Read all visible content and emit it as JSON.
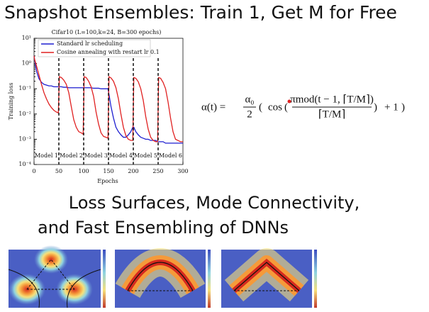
{
  "slide": {
    "title": "Snapshot Ensembles: Train 1, Get M for Free",
    "formula": {
      "lhs": "α(t) =",
      "coef_num": "α₀",
      "coef_den": "2",
      "open": "(",
      "func": "cos",
      "inner_open": "(",
      "frac_num": "πmod(t − 1, ⌈T/M⌉)",
      "frac_den": "⌈T/M⌉",
      "inner_close": ")",
      "tail": "+ 1",
      "close": ")"
    },
    "subtitle_lines": [
      "Loss Surfaces, Mode Connectivity,",
      "and Fast Ensembling of DNNs"
    ]
  },
  "chart_data": {
    "type": "line",
    "title": "Cifar10 (L=100,k=24, B=300 epochs)",
    "x_label": "Epochs",
    "y_label": "Training loss",
    "log_y": true,
    "x": [
      0,
      1,
      5,
      10,
      15,
      20,
      25,
      30,
      35,
      40,
      45,
      49,
      51,
      55,
      60,
      65,
      70,
      75,
      80,
      85,
      90,
      95,
      99,
      101,
      105,
      110,
      115,
      120,
      125,
      130,
      135,
      140,
      145,
      149,
      151,
      155,
      160,
      165,
      170,
      175,
      180,
      185,
      190,
      195,
      199,
      201,
      205,
      210,
      215,
      220,
      225,
      230,
      235,
      240,
      245,
      249,
      251,
      255,
      260,
      265,
      270,
      275,
      280,
      285,
      290,
      295,
      299,
      300
    ],
    "series": [
      {
        "name": "Standard lr scheduling",
        "color": "#1f1fd0",
        "values": [
          2.0,
          1.5,
          0.5,
          0.25,
          0.18,
          0.15,
          0.14,
          0.13,
          0.13,
          0.12,
          0.12,
          0.12,
          0.12,
          0.12,
          0.115,
          0.115,
          0.11,
          0.11,
          0.11,
          0.11,
          0.11,
          0.11,
          0.11,
          0.11,
          0.11,
          0.11,
          0.11,
          0.105,
          0.105,
          0.105,
          0.1,
          0.1,
          0.1,
          0.1,
          0.06,
          0.02,
          0.007,
          0.003,
          0.002,
          0.0015,
          0.0012,
          0.0012,
          0.0015,
          0.002,
          0.003,
          0.003,
          0.002,
          0.0015,
          0.0012,
          0.0011,
          0.001,
          0.001,
          0.0009,
          0.0009,
          0.0009,
          0.0008,
          0.0008,
          0.0008,
          0.0008,
          0.0007,
          0.0007,
          0.0007,
          0.0007,
          0.0007,
          0.0007,
          0.0007,
          0.0007,
          0.0007
        ]
      },
      {
        "name": "Cosine annealing with restart lr 0.1",
        "color": "#e02020",
        "values": [
          2.0,
          1.5,
          0.8,
          0.35,
          0.15,
          0.07,
          0.04,
          0.025,
          0.018,
          0.014,
          0.012,
          0.011,
          0.3,
          0.28,
          0.22,
          0.15,
          0.07,
          0.02,
          0.006,
          0.003,
          0.002,
          0.0018,
          0.0016,
          0.3,
          0.28,
          0.2,
          0.12,
          0.05,
          0.012,
          0.004,
          0.0018,
          0.0013,
          0.0012,
          0.0011,
          0.3,
          0.27,
          0.2,
          0.11,
          0.04,
          0.01,
          0.003,
          0.0014,
          0.001,
          0.0009,
          0.0009,
          0.28,
          0.26,
          0.19,
          0.1,
          0.035,
          0.008,
          0.0025,
          0.0012,
          0.0009,
          0.0008,
          0.0008,
          0.28,
          0.26,
          0.18,
          0.1,
          0.03,
          0.007,
          0.002,
          0.001,
          0.0009,
          0.0008,
          0.0008,
          0.0008
        ]
      }
    ],
    "xlim": [
      0,
      300
    ],
    "ylim": [
      0.0001,
      10
    ],
    "xticks": [
      0,
      50,
      100,
      150,
      200,
      250,
      300
    ],
    "yticks": [
      {
        "value": 0.0001,
        "label": "10⁻⁴"
      },
      {
        "value": 0.001,
        "label": "10⁻³"
      },
      {
        "value": 0.01,
        "label": "10⁻²"
      },
      {
        "value": 0.1,
        "label": "10⁻¹"
      },
      {
        "value": 1,
        "label": "10⁰"
      },
      {
        "value": 10,
        "label": "10¹"
      }
    ],
    "vlines": [
      50,
      100,
      150,
      200,
      250
    ],
    "region_labels": [
      "Model 1",
      "Model 2",
      "Model 3",
      "Model 4",
      "Model 5",
      "Model 6"
    ],
    "legend_position": "upper left"
  }
}
